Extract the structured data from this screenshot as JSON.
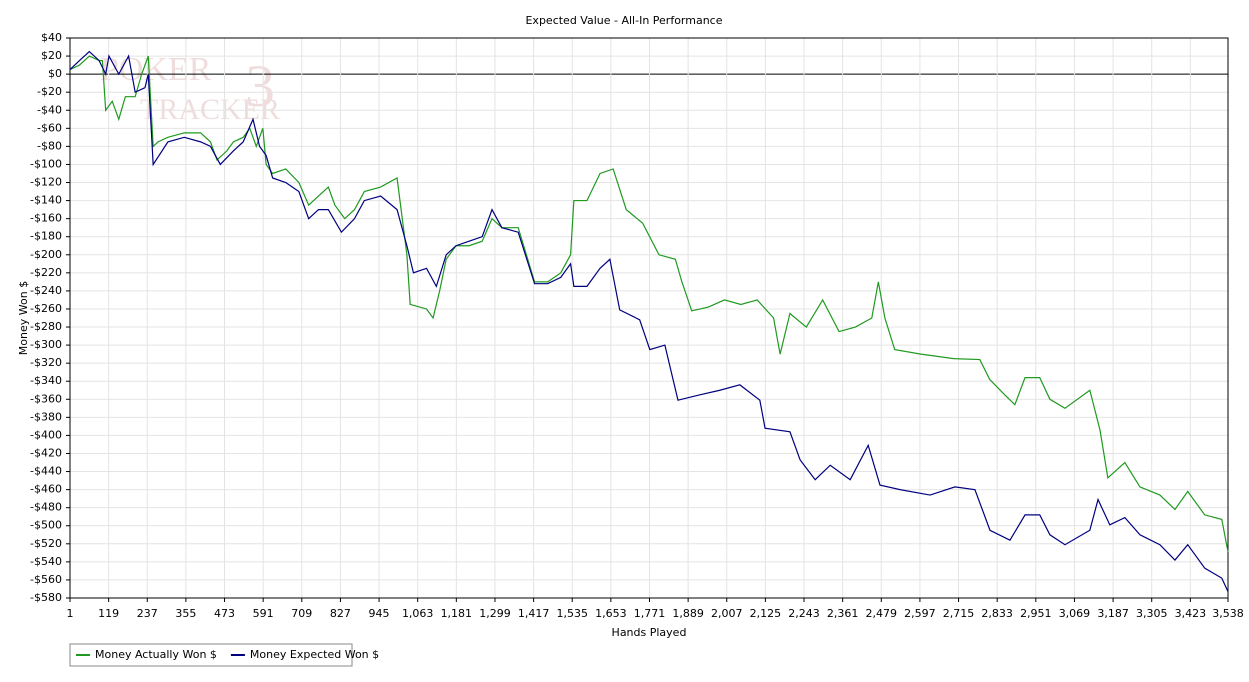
{
  "chart_data": {
    "type": "line",
    "title": "Expected Value - All-In Performance",
    "xlabel": "Hands Played",
    "ylabel": "Money Won $",
    "watermark": [
      "POKER",
      "TRACKER",
      "3"
    ],
    "xlim": [
      1,
      3538
    ],
    "ylim": [
      -580,
      40
    ],
    "grid": true,
    "legend": "bottom-left",
    "xticks": [
      1,
      119,
      237,
      355,
      473,
      591,
      709,
      827,
      945,
      {
        "value": 1063,
        "label": "1,063"
      },
      {
        "value": 1181,
        "label": "1,181"
      },
      {
        "value": 1299,
        "label": "1,299"
      },
      {
        "value": 1417,
        "label": "1,417"
      },
      {
        "value": 1535,
        "label": "1,535"
      },
      {
        "value": 1653,
        "label": "1,653"
      },
      {
        "value": 1771,
        "label": "1,771"
      },
      {
        "value": 1889,
        "label": "1,889"
      },
      {
        "value": 2007,
        "label": "2,007"
      },
      {
        "value": 2125,
        "label": "2,125"
      },
      {
        "value": 2243,
        "label": "2,243"
      },
      {
        "value": 2361,
        "label": "2,361"
      },
      {
        "value": 2479,
        "label": "2,479"
      },
      {
        "value": 2597,
        "label": "2,597"
      },
      {
        "value": 2715,
        "label": "2,715"
      },
      {
        "value": 2833,
        "label": "2,833"
      },
      {
        "value": 2951,
        "label": "2,951"
      },
      {
        "value": 3069,
        "label": "3,069"
      },
      {
        "value": 3187,
        "label": "3,187"
      },
      {
        "value": 3305,
        "label": "3,305"
      },
      {
        "value": 3423,
        "label": "3,423"
      },
      {
        "value": 3538,
        "label": "3,538"
      }
    ],
    "yticks": [
      {
        "value": 40,
        "label": "$40"
      },
      {
        "value": 20,
        "label": "$20"
      },
      {
        "value": 0,
        "label": "$0"
      },
      {
        "value": -20,
        "label": "-$20"
      },
      {
        "value": -40,
        "label": "-$40"
      },
      {
        "value": -60,
        "label": "-$60"
      },
      {
        "value": -80,
        "label": "-$80"
      },
      {
        "value": -100,
        "label": "-$100"
      },
      {
        "value": -120,
        "label": "-$120"
      },
      {
        "value": -140,
        "label": "-$140"
      },
      {
        "value": -160,
        "label": "-$160"
      },
      {
        "value": -180,
        "label": "-$180"
      },
      {
        "value": -200,
        "label": "-$200"
      },
      {
        "value": -220,
        "label": "-$220"
      },
      {
        "value": -240,
        "label": "-$240"
      },
      {
        "value": -260,
        "label": "-$260"
      },
      {
        "value": -280,
        "label": "-$280"
      },
      {
        "value": -300,
        "label": "-$300"
      },
      {
        "value": -320,
        "label": "-$320"
      },
      {
        "value": -340,
        "label": "-$340"
      },
      {
        "value": -360,
        "label": "-$360"
      },
      {
        "value": -380,
        "label": "-$380"
      },
      {
        "value": -400,
        "label": "-$400"
      },
      {
        "value": -420,
        "label": "-$420"
      },
      {
        "value": -440,
        "label": "-$440"
      },
      {
        "value": -460,
        "label": "-$460"
      },
      {
        "value": -480,
        "label": "-$480"
      },
      {
        "value": -500,
        "label": "-$500"
      },
      {
        "value": -520,
        "label": "-$520"
      },
      {
        "value": -540,
        "label": "-$540"
      },
      {
        "value": -560,
        "label": "-$560"
      },
      {
        "value": -580,
        "label": "-$580"
      }
    ],
    "series": [
      {
        "name": "Money Actually Won $",
        "color": "#1f9a1f",
        "x": [
          1,
          30,
          60,
          90,
          100,
          110,
          130,
          150,
          170,
          200,
          220,
          240,
          255,
          270,
          300,
          350,
          400,
          430,
          450,
          480,
          500,
          530,
          550,
          570,
          590,
          600,
          620,
          660,
          700,
          730,
          760,
          790,
          810,
          840,
          870,
          900,
          950,
          1000,
          1030,
          1040,
          1090,
          1110,
          1130,
          1150,
          1180,
          1220,
          1260,
          1290,
          1320,
          1370,
          1420,
          1460,
          1500,
          1530,
          1540,
          1580,
          1620,
          1660,
          1700,
          1750,
          1800,
          1850,
          1870,
          1900,
          1950,
          2000,
          2050,
          2100,
          2150,
          2170,
          2200,
          2250,
          2300,
          2350,
          2400,
          2450,
          2470,
          2490,
          2520,
          2600,
          2700,
          2780,
          2810,
          2856,
          2887,
          2918,
          2963,
          2994,
          3040,
          3116,
          3147,
          3171,
          3223,
          3269,
          3330,
          3376,
          3415,
          3467,
          3519,
          3538
        ],
        "values": [
          5,
          10,
          20,
          15,
          15,
          -40,
          -30,
          -50,
          -25,
          -25,
          0,
          20,
          -80,
          -75,
          -70,
          -65,
          -65,
          -75,
          -95,
          -85,
          -75,
          -70,
          -60,
          -80,
          -60,
          -100,
          -110,
          -105,
          -120,
          -145,
          -135,
          -125,
          -145,
          -160,
          -150,
          -130,
          -125,
          -115,
          -200,
          -255,
          -260,
          -270,
          -240,
          -205,
          -190,
          -190,
          -185,
          -160,
          -170,
          -170,
          -230,
          -230,
          -220,
          -200,
          -140,
          -140,
          -110,
          -105,
          -150,
          -165,
          -200,
          -205,
          -230,
          -262,
          -258,
          -250,
          -255,
          -250,
          -270,
          -310,
          -265,
          -280,
          -250,
          -285,
          -280,
          -270,
          -230,
          -270,
          -305,
          -310,
          -315,
          -316,
          -338,
          -355,
          -366,
          -336,
          -336,
          -360,
          -370,
          -350,
          -394,
          -447,
          -430,
          -457,
          -466,
          -482,
          -462,
          -488,
          -493,
          -529
        ]
      },
      {
        "name": "Money Expected Won $",
        "color": "#000080",
        "x": [
          1,
          30,
          60,
          90,
          110,
          120,
          150,
          180,
          200,
          230,
          240,
          255,
          300,
          350,
          400,
          430,
          460,
          500,
          530,
          560,
          580,
          600,
          620,
          660,
          700,
          730,
          760,
          790,
          830,
          870,
          900,
          950,
          1000,
          1030,
          1050,
          1090,
          1120,
          1150,
          1180,
          1220,
          1260,
          1290,
          1320,
          1370,
          1420,
          1460,
          1500,
          1530,
          1540,
          1580,
          1620,
          1650,
          1680,
          1741,
          1772,
          1818,
          1858,
          1925,
          1986,
          2047,
          2108,
          2124,
          2200,
          2231,
          2277,
          2323,
          2384,
          2439,
          2475,
          2536,
          2628,
          2704,
          2765,
          2811,
          2872,
          2918,
          2963,
          2994,
          3040,
          3116,
          3141,
          3177,
          3223,
          3269,
          3330,
          3376,
          3415,
          3467,
          3519,
          3538
        ],
        "values": [
          5,
          15,
          25,
          15,
          0,
          20,
          0,
          20,
          -20,
          -15,
          0,
          -100,
          -75,
          -70,
          -75,
          -80,
          -100,
          -85,
          -75,
          -50,
          -80,
          -90,
          -115,
          -120,
          -130,
          -160,
          -150,
          -150,
          -175,
          -160,
          -140,
          -135,
          -150,
          -190,
          -220,
          -215,
          -235,
          -200,
          -190,
          -185,
          -180,
          -150,
          -170,
          -175,
          -232,
          -232,
          -225,
          -210,
          -235,
          -235,
          -215,
          -205,
          -261,
          -272,
          -305,
          -300,
          -361,
          -355,
          -350,
          -344,
          -361,
          -392,
          -396,
          -427,
          -449,
          -433,
          -449,
          -411,
          -455,
          -460,
          -466,
          -457,
          -460,
          -505,
          -516,
          -488,
          -488,
          -510,
          -521,
          -505,
          -471,
          -499,
          -491,
          -510,
          -521,
          -538,
          -521,
          -547,
          -558,
          -573
        ]
      }
    ]
  }
}
